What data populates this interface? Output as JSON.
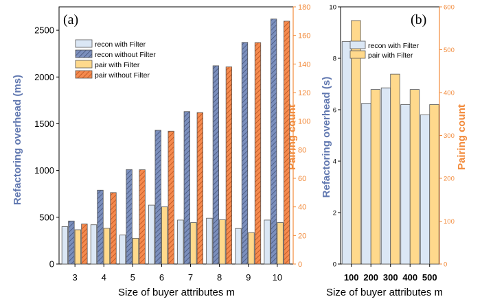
{
  "colors": {
    "recon_with": "#dbe7f5",
    "recon_without": "#7b8fbd",
    "pair_with": "#ffd98c",
    "pair_without": "#f58a4e",
    "left_axis": "#6178b0",
    "right_axis": "#f28a3a"
  },
  "chart_data": [
    {
      "type": "bar",
      "panel_label": "(a)",
      "xlabel": "Size of buyer attributes m",
      "ylabel_left": "Refactoring overhead (ms)",
      "ylabel_right": "Pairing count",
      "categories": [
        "3",
        "4",
        "5",
        "6",
        "7",
        "8",
        "9",
        "10"
      ],
      "ylim_left": [
        0,
        2750
      ],
      "ylim_right": [
        0,
        180
      ],
      "yticks_left": [
        0,
        500,
        1000,
        1500,
        2000,
        2500
      ],
      "yticks_right": [
        0,
        20,
        40,
        60,
        80,
        100,
        120,
        140,
        160,
        180
      ],
      "legend_position": "upper-left",
      "series": [
        {
          "name": "recon with Filter",
          "axis": "left",
          "values": [
            400,
            420,
            310,
            630,
            470,
            490,
            380,
            470
          ]
        },
        {
          "name": "recon without Filter",
          "axis": "left",
          "values": [
            460,
            790,
            1010,
            1430,
            1630,
            2120,
            2370,
            2620
          ]
        },
        {
          "name": "pair with Filter",
          "axis": "right",
          "values": [
            24,
            25,
            18,
            40,
            29,
            31,
            22,
            29
          ]
        },
        {
          "name": "pair without Filter",
          "axis": "right",
          "values": [
            28,
            50,
            66,
            93,
            106,
            138,
            155,
            170
          ]
        }
      ]
    },
    {
      "type": "bar",
      "panel_label": "(b)",
      "xlabel": "Size of buyer attributes m",
      "ylabel_left": "Refactoring overhead (s)",
      "ylabel_right": "Pairing count",
      "categories": [
        "100",
        "200",
        "300",
        "400",
        "500"
      ],
      "ylim_left": [
        0,
        10
      ],
      "ylim_right": [
        0,
        600
      ],
      "yticks_left": [
        0,
        2,
        4,
        6,
        8,
        10
      ],
      "yticks_right": [
        0,
        100,
        200,
        300,
        400,
        500,
        600
      ],
      "legend_position": "upper-right",
      "series": [
        {
          "name": "recon with Filter",
          "axis": "left",
          "values": [
            8.65,
            6.25,
            6.85,
            6.2,
            5.8
          ]
        },
        {
          "name": "pair with Filter",
          "axis": "right",
          "values": [
            568,
            407,
            443,
            407,
            372
          ]
        }
      ]
    }
  ]
}
